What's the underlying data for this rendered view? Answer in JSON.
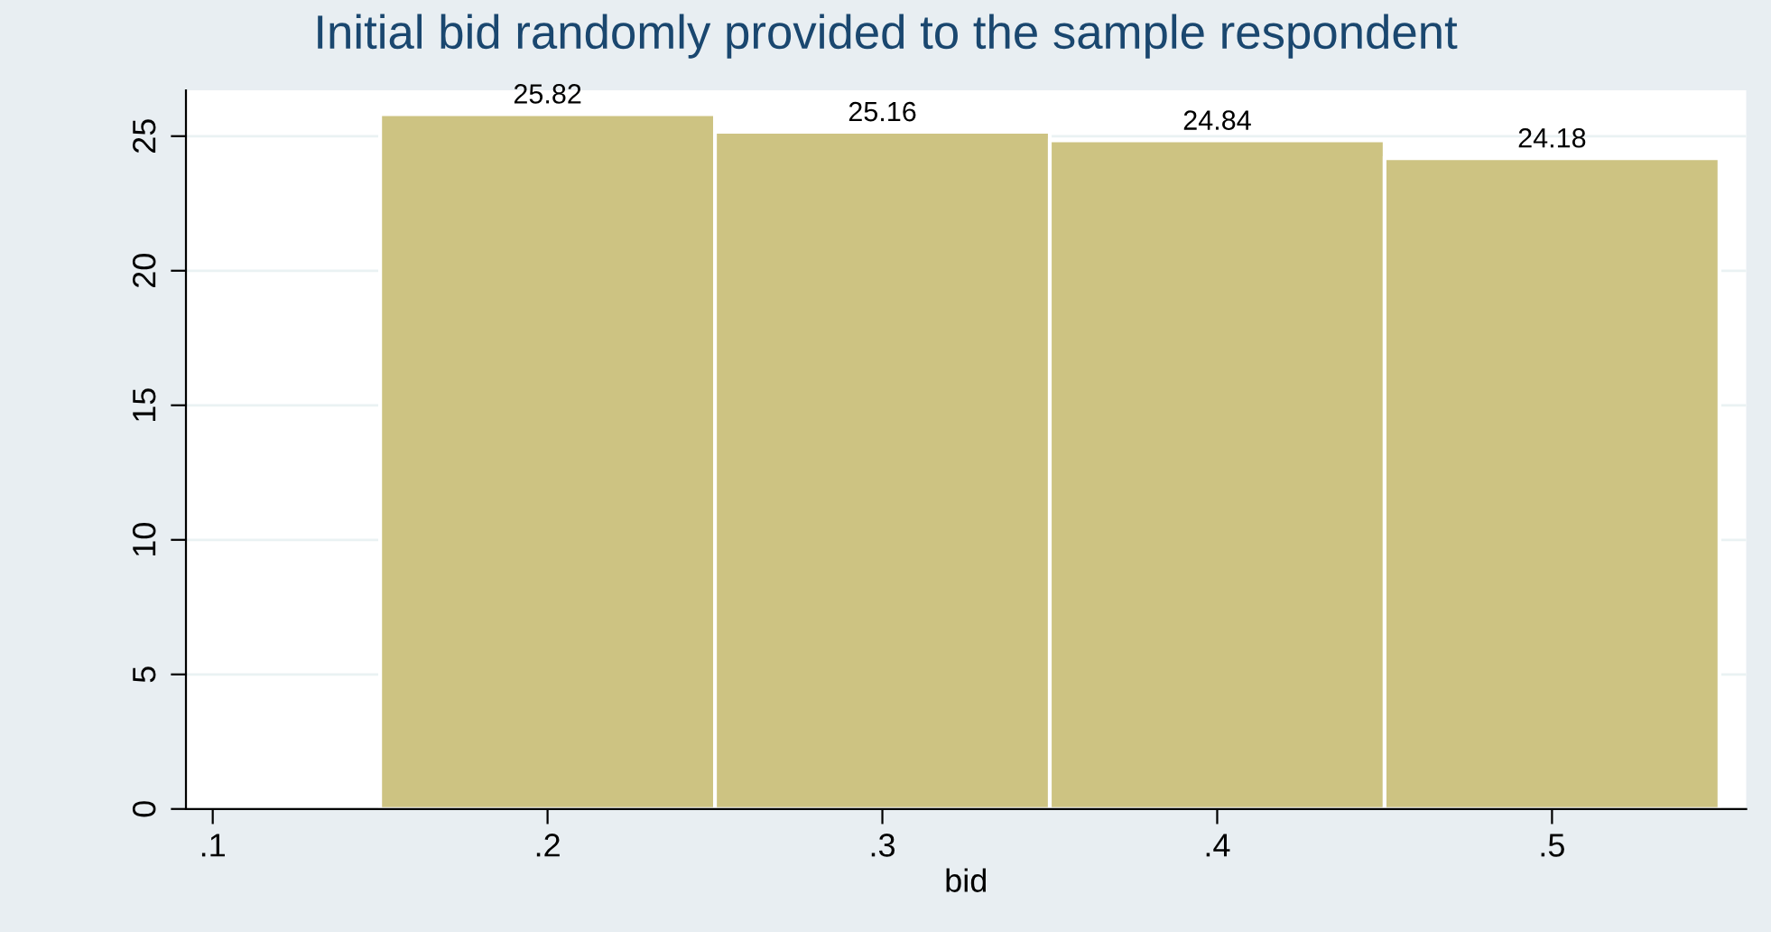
{
  "chart_data": {
    "type": "histogram",
    "title": "Initial bid randomly provided to the sample respondent",
    "xlabel": "bid",
    "bins": [
      0.15,
      0.25,
      0.35,
      0.45,
      0.55
    ],
    "values": [
      25.82,
      25.16,
      24.84,
      24.18
    ],
    "color": "#cdc382",
    "data_labels": true,
    "grid": "y",
    "xlim": [
      0.092,
      0.558
    ],
    "xticks": [
      {
        "value": 0.1,
        "label": ".1"
      },
      {
        "value": 0.2,
        "label": ".2"
      },
      {
        "value": 0.3,
        "label": ".3"
      },
      {
        "value": 0.4,
        "label": ".4"
      },
      {
        "value": 0.5,
        "label": ".5"
      }
    ],
    "ylim": [
      0,
      26.7
    ],
    "yticks": [
      0,
      5,
      10,
      15,
      20,
      25
    ]
  }
}
